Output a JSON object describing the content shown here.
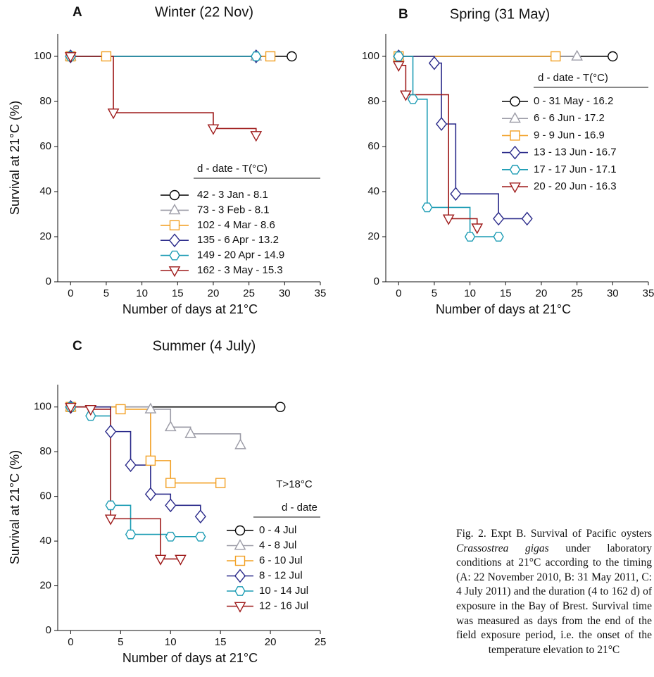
{
  "chart_data": [
    {
      "type": "line",
      "panel": "A",
      "title": "Winter (22 Nov)",
      "x_label": "Number of days at 21°C",
      "y_label": "Survival at 21°C (%)",
      "legend_title": "d - date - T(°C)",
      "xlim": [
        -1.8,
        35
      ],
      "xticks": [
        0,
        5,
        10,
        15,
        20,
        25,
        30,
        35
      ],
      "ylim": [
        0,
        110
      ],
      "yticks": [
        0,
        20,
        40,
        60,
        80,
        100
      ],
      "series": [
        {
          "name": "42 - 3 Jan - 8.1",
          "color": "#000000",
          "marker": "circle",
          "x": [
            0,
            31
          ],
          "values": [
            100,
            100
          ]
        },
        {
          "name": "73 - 3 Feb - 8.1",
          "color": "#9b9ba6",
          "marker": "triangle-up",
          "x": [
            0,
            26
          ],
          "values": [
            100,
            100
          ]
        },
        {
          "name": "102 - 4 Mar - 8.6",
          "color": "#f2a024",
          "marker": "square",
          "x": [
            0,
            5,
            28
          ],
          "values": [
            100,
            100,
            100
          ]
        },
        {
          "name": "135 - 6 Apr - 13.2",
          "color": "#2a2a8a",
          "marker": "diamond",
          "x": [
            0,
            26
          ],
          "values": [
            100,
            100
          ]
        },
        {
          "name": "149 - 20 Apr - 14.9",
          "color": "#1c9cb4",
          "marker": "hexagon",
          "x": [
            0,
            26
          ],
          "values": [
            100,
            100
          ]
        },
        {
          "name": "162 - 3 May - 15.3",
          "color": "#9e1a1a",
          "marker": "triangle-down",
          "x": [
            0,
            6,
            20,
            26
          ],
          "values": [
            100,
            75,
            68,
            65
          ]
        }
      ]
    },
    {
      "type": "line",
      "panel": "B",
      "title": "Spring (31 May)",
      "x_label": "Number of days at 21°C",
      "legend_title": "d - date - T(°C)",
      "xlim": [
        -1.8,
        35
      ],
      "xticks": [
        0,
        5,
        10,
        15,
        20,
        25,
        30,
        35
      ],
      "ylim": [
        0,
        110
      ],
      "yticks": [
        0,
        20,
        40,
        60,
        80,
        100
      ],
      "series": [
        {
          "name": "0 - 31 May - 16.2",
          "color": "#000000",
          "marker": "circle",
          "x": [
            0,
            30
          ],
          "values": [
            100,
            100
          ]
        },
        {
          "name": "6 - 6 Jun - 17.2",
          "color": "#9b9ba6",
          "marker": "triangle-up",
          "x": [
            0,
            25
          ],
          "values": [
            100,
            100
          ]
        },
        {
          "name": "9 - 9 Jun - 16.9",
          "color": "#f2a024",
          "marker": "square",
          "x": [
            0,
            22
          ],
          "values": [
            100,
            100
          ]
        },
        {
          "name": "13 - 13 Jun - 16.7",
          "color": "#2a2a8a",
          "marker": "diamond",
          "x": [
            0,
            5,
            6,
            8,
            14,
            18
          ],
          "values": [
            100,
            97,
            70,
            39,
            28,
            28
          ]
        },
        {
          "name": "17 - 17 Jun - 17.1",
          "color": "#1c9cb4",
          "marker": "hexagon",
          "x": [
            0,
            2,
            4,
            10,
            14
          ],
          "values": [
            100,
            81,
            33,
            20,
            20
          ]
        },
        {
          "name": "20 - 20 Jun - 16.3",
          "color": "#9e1a1a",
          "marker": "triangle-down",
          "x": [
            0,
            1,
            7,
            11
          ],
          "values": [
            96,
            83,
            28,
            24
          ]
        }
      ]
    },
    {
      "type": "line",
      "panel": "C",
      "title": "Summer (4 July)",
      "x_label": "Number of days at 21°C",
      "y_label": "Survival at 21°C (%)",
      "annotation": "T>18°C",
      "legend_title": "d - date",
      "xlim": [
        -1.3,
        25
      ],
      "xticks": [
        0,
        5,
        10,
        15,
        20,
        25
      ],
      "ylim": [
        0,
        110
      ],
      "yticks": [
        0,
        20,
        40,
        60,
        80,
        100
      ],
      "series": [
        {
          "name": "0 - 4 Jul",
          "color": "#000000",
          "marker": "circle",
          "x": [
            0,
            21
          ],
          "values": [
            100,
            100
          ]
        },
        {
          "name": "4 - 8 Jul",
          "color": "#9b9ba6",
          "marker": "triangle-up",
          "x": [
            0,
            8,
            10,
            12,
            17
          ],
          "values": [
            100,
            99,
            91,
            88,
            83
          ]
        },
        {
          "name": "6 - 10 Jul",
          "color": "#f2a024",
          "marker": "square",
          "x": [
            0,
            5,
            8,
            10,
            15
          ],
          "values": [
            100,
            99,
            76,
            66,
            66
          ]
        },
        {
          "name": "8 - 12 Jul",
          "color": "#2a2a8a",
          "marker": "diamond",
          "x": [
            0,
            4,
            6,
            8,
            10,
            13
          ],
          "values": [
            100,
            89,
            74,
            61,
            56,
            51
          ]
        },
        {
          "name": "10 - 14 Jul",
          "color": "#1c9cb4",
          "marker": "hexagon",
          "x": [
            0,
            2,
            4,
            6,
            10,
            13
          ],
          "values": [
            100,
            96,
            56,
            43,
            42,
            42
          ]
        },
        {
          "name": "12 - 16 Jul",
          "color": "#9e1a1a",
          "marker": "triangle-down",
          "x": [
            0,
            2,
            4,
            9,
            11
          ],
          "values": [
            100,
            99,
            50,
            32,
            32
          ]
        }
      ]
    }
  ],
  "caption": [
    "Fig. 2. Expt B. Survival of Pacific oysters ",
    "Crassostrea gigas",
    " under laboratory conditions at 21°C according to the timing (A: 22 November 2010, B: 31 May 2011, C: 4 July 2011) and the duration (4 to 162 d) of exposure in the Bay of Brest. Survival time was measured as days from the end of the field exposure period, i.e. the onset of the temperature elevation to 21°C"
  ]
}
